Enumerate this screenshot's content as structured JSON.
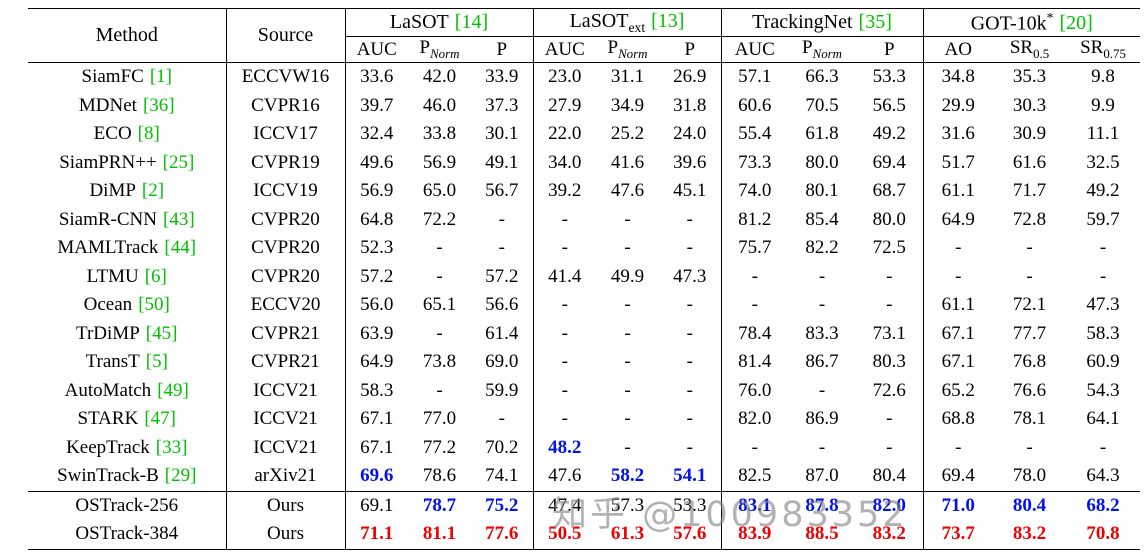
{
  "watermark": {
    "text": "知乎 @100983352"
  },
  "colors": {
    "background": "#ffffff",
    "text": "#000000",
    "border": "#000000",
    "citation_green": "#00c000",
    "second_best_blue": "#0010ee",
    "best_red": "#ee0000",
    "watermark_gray": "#828282"
  },
  "table": {
    "method_label": "Method",
    "source_label": "Source",
    "groups": [
      {
        "title": "LaSOT",
        "title_sub": "",
        "title_sup": "",
        "cite": "[14]",
        "columns": [
          {
            "t": "AUC",
            "sub": ""
          },
          {
            "t": "P",
            "sub": "Norm",
            "it": true
          },
          {
            "t": "P",
            "sub": ""
          }
        ]
      },
      {
        "title": "LaSOT",
        "title_sub": "ext",
        "title_sup": "",
        "cite": "[13]",
        "columns": [
          {
            "t": "AUC",
            "sub": ""
          },
          {
            "t": "P",
            "sub": "Norm",
            "it": true
          },
          {
            "t": "P",
            "sub": ""
          }
        ]
      },
      {
        "title": "TrackingNet",
        "title_sub": "",
        "title_sup": "",
        "cite": "[35]",
        "columns": [
          {
            "t": "AUC",
            "sub": ""
          },
          {
            "t": "P",
            "sub": "Norm",
            "it": true
          },
          {
            "t": "P",
            "sub": ""
          }
        ]
      },
      {
        "title": "GOT-10k",
        "title_sub": "",
        "title_sup": "*",
        "cite": "[20]",
        "columns": [
          {
            "t": "AO",
            "sub": ""
          },
          {
            "t": "SR",
            "sub": "0.5"
          },
          {
            "t": "SR",
            "sub": "0.75"
          }
        ]
      }
    ],
    "rows": [
      {
        "method": "SiamFC",
        "cite": "[1]",
        "source": "ECCVW16",
        "values": [
          "33.6",
          "42.0",
          "33.9",
          "23.0",
          "31.1",
          "26.9",
          "57.1",
          "66.3",
          "53.3",
          "34.8",
          "35.3",
          "9.8"
        ]
      },
      {
        "method": "MDNet",
        "cite": "[36]",
        "source": "CVPR16",
        "values": [
          "39.7",
          "46.0",
          "37.3",
          "27.9",
          "34.9",
          "31.8",
          "60.6",
          "70.5",
          "56.5",
          "29.9",
          "30.3",
          "9.9"
        ]
      },
      {
        "method": "ECO",
        "cite": "[8]",
        "source": "ICCV17",
        "values": [
          "32.4",
          "33.8",
          "30.1",
          "22.0",
          "25.2",
          "24.0",
          "55.4",
          "61.8",
          "49.2",
          "31.6",
          "30.9",
          "11.1"
        ]
      },
      {
        "method": "SiamPRN++",
        "cite": "[25]",
        "source": "CVPR19",
        "values": [
          "49.6",
          "56.9",
          "49.1",
          "34.0",
          "41.6",
          "39.6",
          "73.3",
          "80.0",
          "69.4",
          "51.7",
          "61.6",
          "32.5"
        ]
      },
      {
        "method": "DiMP",
        "cite": "[2]",
        "source": "ICCV19",
        "values": [
          "56.9",
          "65.0",
          "56.7",
          "39.2",
          "47.6",
          "45.1",
          "74.0",
          "80.1",
          "68.7",
          "61.1",
          "71.7",
          "49.2"
        ]
      },
      {
        "method": "SiamR-CNN",
        "cite": "[43]",
        "source": "CVPR20",
        "values": [
          "64.8",
          "72.2",
          "-",
          "-",
          "-",
          "-",
          "81.2",
          "85.4",
          "80.0",
          "64.9",
          "72.8",
          "59.7"
        ]
      },
      {
        "method": "MAMLTrack",
        "cite": "[44]",
        "source": "CVPR20",
        "values": [
          "52.3",
          "-",
          "-",
          "-",
          "-",
          "-",
          "75.7",
          "82.2",
          "72.5",
          "-",
          "-",
          "-"
        ]
      },
      {
        "method": "LTMU",
        "cite": "[6]",
        "source": "CVPR20",
        "values": [
          "57.2",
          "-",
          "57.2",
          "41.4",
          "49.9",
          "47.3",
          "-",
          "-",
          "-",
          "-",
          "-",
          "-"
        ]
      },
      {
        "method": "Ocean",
        "cite": "[50]",
        "source": "ECCV20",
        "values": [
          "56.0",
          "65.1",
          "56.6",
          "-",
          "-",
          "-",
          "-",
          "-",
          "-",
          "61.1",
          "72.1",
          "47.3"
        ]
      },
      {
        "method": "TrDiMP",
        "cite": "[45]",
        "source": "CVPR21",
        "values": [
          "63.9",
          "-",
          "61.4",
          "-",
          "-",
          "-",
          "78.4",
          "83.3",
          "73.1",
          "67.1",
          "77.7",
          "58.3"
        ]
      },
      {
        "method": "TransT",
        "cite": "[5]",
        "source": "CVPR21",
        "values": [
          "64.9",
          "73.8",
          "69.0",
          "-",
          "-",
          "-",
          "81.4",
          "86.7",
          "80.3",
          "67.1",
          "76.8",
          "60.9"
        ]
      },
      {
        "method": "AutoMatch",
        "cite": "[49]",
        "source": "ICCV21",
        "values": [
          "58.3",
          "-",
          "59.9",
          "-",
          "-",
          "-",
          "76.0",
          "-",
          "72.6",
          "65.2",
          "76.6",
          "54.3"
        ]
      },
      {
        "method": "STARK",
        "cite": "[47]",
        "source": "ICCV21",
        "values": [
          "67.1",
          "77.0",
          "-",
          "-",
          "-",
          "-",
          "82.0",
          "86.9",
          "-",
          "68.8",
          "78.1",
          "64.1"
        ]
      },
      {
        "method": "KeepTrack",
        "cite": "[33]",
        "source": "ICCV21",
        "values": [
          "67.1",
          "77.2",
          "70.2",
          "48.2",
          "-",
          "-",
          "-",
          "-",
          "-",
          "-",
          "-",
          "-"
        ],
        "styles": [
          "",
          "",
          "",
          "b",
          "",
          "",
          "",
          "",
          "",
          "",
          "",
          ""
        ]
      },
      {
        "method": "SwinTrack-B",
        "cite": "[29]",
        "source": "arXiv21",
        "values": [
          "69.6",
          "78.6",
          "74.1",
          "47.6",
          "58.2",
          "54.1",
          "82.5",
          "87.0",
          "80.4",
          "69.4",
          "78.0",
          "64.3"
        ],
        "styles": [
          "b",
          "",
          "",
          "",
          "b",
          "b",
          "",
          "",
          "",
          "",
          "",
          ""
        ]
      },
      {
        "method": "OSTrack-256",
        "cite": "",
        "source": "Ours",
        "separator": true,
        "values": [
          "69.1",
          "78.7",
          "75.2",
          "47.4",
          "57.3",
          "53.3",
          "83.1",
          "87.8",
          "82.0",
          "71.0",
          "80.4",
          "68.2"
        ],
        "styles": [
          "",
          "b",
          "b",
          "",
          "",
          "",
          "b",
          "b",
          "b",
          "b",
          "b",
          "b"
        ]
      },
      {
        "method": "OSTrack-384",
        "cite": "",
        "source": "Ours",
        "values": [
          "71.1",
          "81.1",
          "77.6",
          "50.5",
          "61.3",
          "57.6",
          "83.9",
          "88.5",
          "83.2",
          "73.7",
          "83.2",
          "70.8"
        ],
        "styles": [
          "r",
          "r",
          "r",
          "r",
          "r",
          "r",
          "r",
          "r",
          "r",
          "r",
          "r",
          "r"
        ]
      }
    ]
  }
}
